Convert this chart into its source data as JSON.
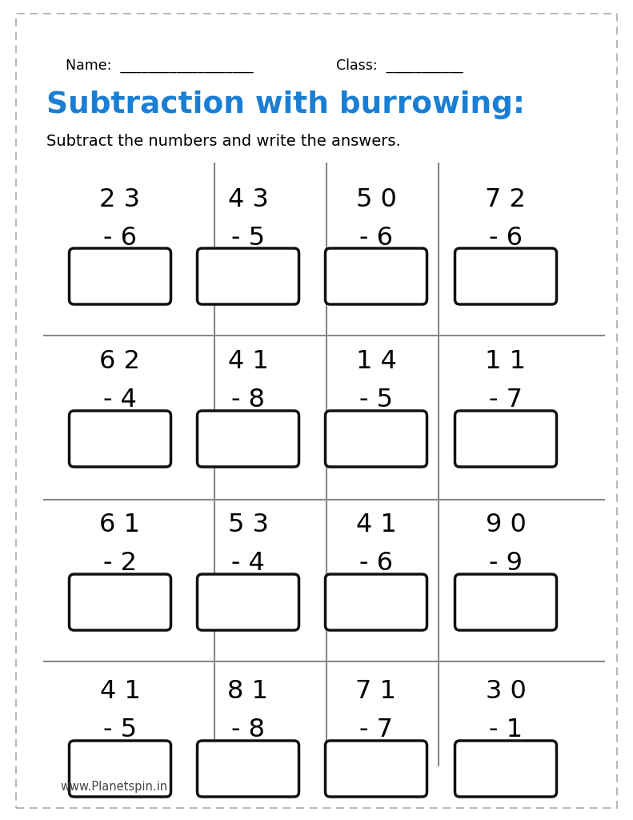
{
  "title": "Subtraction with burrowing:",
  "subtitle": "Subtract the numbers and write the answers.",
  "name_label": "Name:  ___________________",
  "class_label": "Class:  ___________",
  "footer": "www.Planetspin.in",
  "title_color": "#1a7fd4",
  "text_color": "#000000",
  "bg_color": "#ffffff",
  "grid_rows": [
    [
      [
        "2 3",
        "6"
      ],
      [
        "4 3",
        "5"
      ],
      [
        "5 0",
        "6"
      ],
      [
        "7 2",
        "6"
      ]
    ],
    [
      [
        "6 2",
        "4"
      ],
      [
        "4 1",
        "8"
      ],
      [
        "1 4",
        "5"
      ],
      [
        "1 1",
        "7"
      ]
    ],
    [
      [
        "6 1",
        "2"
      ],
      [
        "5 3",
        "4"
      ],
      [
        "4 1",
        "6"
      ],
      [
        "9 0",
        "9"
      ]
    ],
    [
      [
        "4 1",
        "5"
      ],
      [
        "8 1",
        "8"
      ],
      [
        "7 1",
        "7"
      ],
      [
        "3 0",
        "1"
      ]
    ]
  ],
  "figsize": [
    7.91,
    10.24
  ],
  "dpi": 100
}
